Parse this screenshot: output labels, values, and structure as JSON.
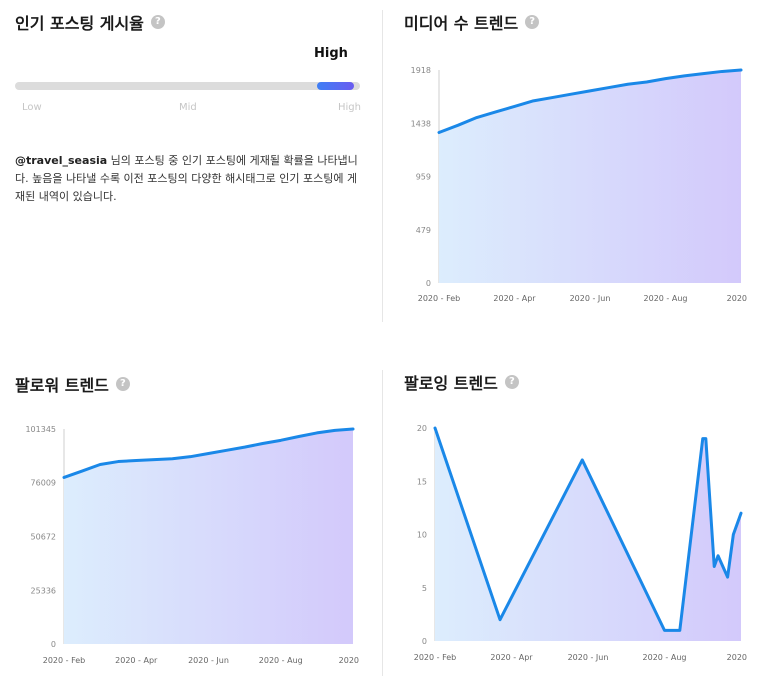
{
  "engagement": {
    "title": "인기 포스팅 게시율",
    "help_icon": "?",
    "level": "High",
    "level_fraction": 0.97,
    "scale_labels": [
      "Low",
      "Mid",
      "High"
    ],
    "desc_handle": "@travel_seasia",
    "desc_text": " 님의 포스팅 중 인기 포스팅에 게재될 확률을 나타냅니다. 높음을 나타낼 수록 이전 포스팅의 다양한 해시태그로 인기 포스팅에 게재된 내역이 있습니다."
  },
  "media_trend": {
    "title": "미디어 수 트렌드",
    "help_icon": "?"
  },
  "follower_trend": {
    "title": "팔로워 트렌드",
    "help_icon": "?"
  },
  "following_trend": {
    "title": "팔로잉 트렌드",
    "help_icon": "?"
  },
  "colors": {
    "line": "#1a88e8",
    "fill_start": "#dcedfd",
    "fill_end": "#d3c9fb",
    "slider_start": "#3f7ff5",
    "slider_end": "#6a5cf0"
  },
  "chart_data": [
    {
      "id": "media",
      "type": "area",
      "x": [
        0,
        0.5,
        1,
        1.5,
        2,
        2.5,
        3,
        3.5,
        4,
        4.5,
        5,
        5.5,
        6,
        6.5,
        7,
        7.5,
        8
      ],
      "values": [
        1355,
        1420,
        1490,
        1540,
        1590,
        1640,
        1670,
        1700,
        1730,
        1760,
        1790,
        1810,
        1840,
        1865,
        1885,
        1905,
        1918
      ],
      "x_tick_labels": [
        "2020 - Feb",
        "2020 - Apr",
        "2020 - Jun",
        "2020 - Aug",
        "2020"
      ],
      "x_tick_positions": [
        0,
        2,
        4,
        6,
        8
      ],
      "y_ticks": [
        0,
        479,
        959,
        1438,
        1918
      ],
      "ylim": [
        0,
        1918
      ],
      "xlim": [
        0,
        8
      ],
      "grid": false
    },
    {
      "id": "followers",
      "type": "area",
      "x": [
        0,
        0.5,
        1,
        1.5,
        2,
        2.5,
        3,
        3.5,
        4,
        4.5,
        5,
        5.5,
        6,
        6.5,
        7,
        7.5,
        8
      ],
      "values": [
        78500,
        81500,
        84600,
        86000,
        86500,
        86900,
        87300,
        88300,
        89800,
        91300,
        92800,
        94500,
        96000,
        97800,
        99500,
        100700,
        101345
      ],
      "x_tick_labels": [
        "2020 - Feb",
        "2020 - Apr",
        "2020 - Jun",
        "2020 - Aug",
        "2020"
      ],
      "x_tick_positions": [
        0,
        2,
        4,
        6,
        8
      ],
      "y_ticks": [
        0,
        25336,
        50672,
        76009,
        101345
      ],
      "ylim": [
        0,
        101345
      ],
      "xlim": [
        0,
        8
      ],
      "grid": false
    },
    {
      "id": "following",
      "type": "area",
      "x": [
        0,
        1.7,
        3.85,
        6.0,
        6.4,
        7.0,
        7.08,
        7.3,
        7.4,
        7.65,
        7.8,
        8.0
      ],
      "values": [
        20,
        2,
        17,
        1,
        1,
        19,
        19,
        7,
        8,
        6,
        10,
        12
      ],
      "x_tick_labels": [
        "2020 - Feb",
        "2020 - Apr",
        "2020 - Jun",
        "2020 - Aug",
        "2020"
      ],
      "x_tick_positions": [
        0,
        2,
        4,
        6,
        8
      ],
      "y_ticks": [
        0,
        5,
        10,
        15,
        20
      ],
      "ylim": [
        0,
        20
      ],
      "xlim": [
        0,
        8
      ],
      "grid": false
    }
  ]
}
